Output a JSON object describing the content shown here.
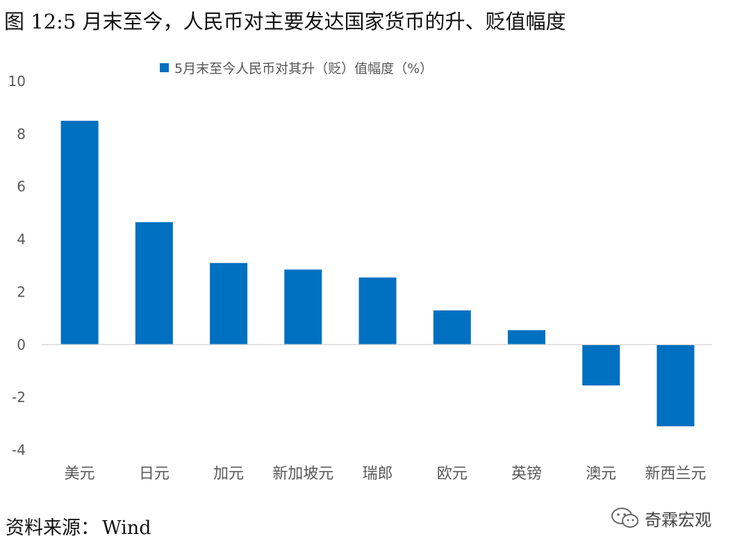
{
  "figure_title": "图 12:5 月末至今，人民币对主要发达国家货币的升、贬值幅度",
  "source": {
    "label": "资料来源：",
    "value": "Wind"
  },
  "watermark": {
    "text": "奇霖宏观",
    "icon": "wechat-icon"
  },
  "colors": {
    "bar": "#0070c0",
    "axis": "#d9d9d9",
    "tick_text": "#595959"
  },
  "chart_data": {
    "type": "bar",
    "title": "",
    "xlabel": "",
    "ylabel": "",
    "legend": "5月末至今人民币对其升（贬）值幅度（%）",
    "legend_position": "top",
    "grid": false,
    "ylim": [
      -4,
      10
    ],
    "yticks": [
      "10",
      "8",
      "6",
      "4",
      "2",
      "0",
      "-2",
      "-4"
    ],
    "categories": [
      "美元",
      "日元",
      "加元",
      "新加坡元",
      "瑞郎",
      "欧元",
      "英镑",
      "澳元",
      "新西兰元"
    ],
    "series": [
      {
        "name": "5月末至今人民币对其升（贬）值幅度（%）",
        "values": [
          8.5,
          4.65,
          3.1,
          2.85,
          2.55,
          1.3,
          0.55,
          -1.55,
          -3.1
        ]
      }
    ]
  }
}
